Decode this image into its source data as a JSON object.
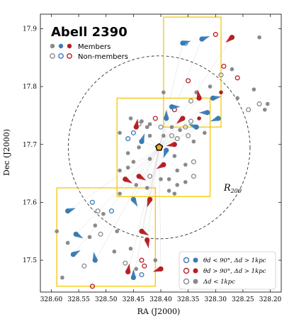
{
  "chart_data": {
    "type": "scatter",
    "title": "Abell 2390",
    "xlabel": "RA (J2000)",
    "ylabel": "Dec (J2000)",
    "xlim": [
      328.62,
      328.18
    ],
    "ylim": [
      17.445,
      17.925
    ],
    "xticks": [
      "328.60",
      "328.55",
      "328.50",
      "328.45",
      "328.40",
      "328.35",
      "328.30",
      "328.25",
      "328.20"
    ],
    "xtick_values": [
      328.6,
      328.55,
      328.5,
      328.45,
      328.4,
      328.35,
      328.3,
      328.25,
      328.2
    ],
    "yticks": [
      "17.5",
      "17.6",
      "17.7",
      "17.8",
      "17.9"
    ],
    "ytick_values": [
      17.5,
      17.6,
      17.7,
      17.8,
      17.9
    ],
    "grid": false,
    "center": {
      "ra": 328.403,
      "dec": 17.695
    },
    "r200_label": "R",
    "r200_sub": "200",
    "r200_label_pos": {
      "ra": 328.285,
      "dec": 17.62
    },
    "circle": {
      "ra": 328.403,
      "dec": 17.695,
      "radius_ra": 0.166,
      "radius_dec": 0.158
    },
    "boxes": [
      {
        "ra_min": 328.29,
        "ra_max": 328.395,
        "dec_min": 17.73,
        "dec_max": 17.92
      },
      {
        "ra_min": 328.31,
        "ra_max": 328.48,
        "dec_min": 17.61,
        "dec_max": 17.78
      },
      {
        "ra_min": 328.41,
        "ra_max": 328.59,
        "dec_min": 17.455,
        "dec_max": 17.625
      }
    ],
    "legend_top": {
      "members_label": "Members",
      "nonmembers_label": "Non-members"
    },
    "legend_bottom": [
      {
        "label": "θd < 90°, Δd > 1kpc",
        "color": "#3b7bb5",
        "type": "blue"
      },
      {
        "label": "θd > 90°, Δd > 1kpc",
        "color": "#b51f24",
        "type": "red"
      },
      {
        "label": "Δd < 1kpc",
        "color": "#888888",
        "type": "gray"
      }
    ],
    "colors": {
      "blue": "#3b7bb5",
      "red": "#b51f24",
      "gray": "#8a8a8a",
      "box": "#f5c800",
      "center": "#f5a623"
    },
    "tails": [
      {
        "ra": 328.325,
        "dec": 17.882,
        "angle": 20,
        "color": "blue"
      },
      {
        "ra": 328.36,
        "dec": 17.875,
        "angle": 15,
        "color": "blue"
      },
      {
        "ra": 328.27,
        "dec": 17.885,
        "angle": 220,
        "color": "red"
      },
      {
        "ra": 328.33,
        "dec": 17.78,
        "angle": 100,
        "color": "red"
      },
      {
        "ra": 328.305,
        "dec": 17.78,
        "angle": 10,
        "color": "blue"
      },
      {
        "ra": 328.295,
        "dec": 17.745,
        "angle": 200,
        "color": "blue"
      },
      {
        "ra": 328.315,
        "dec": 17.755,
        "angle": 180,
        "color": "blue"
      },
      {
        "ra": 328.335,
        "dec": 17.73,
        "angle": 160,
        "color": "blue"
      },
      {
        "ra": 328.36,
        "dec": 17.745,
        "angle": 220,
        "color": "red"
      },
      {
        "ra": 328.38,
        "dec": 17.765,
        "angle": 0,
        "color": "blue"
      },
      {
        "ra": 328.39,
        "dec": 17.745,
        "angle": 90,
        "color": "blue"
      },
      {
        "ra": 328.375,
        "dec": 17.7,
        "angle": 190,
        "color": "red"
      },
      {
        "ra": 328.39,
        "dec": 17.69,
        "angle": 250,
        "color": "blue"
      },
      {
        "ra": 328.395,
        "dec": 17.665,
        "angle": 210,
        "color": "red"
      },
      {
        "ra": 328.445,
        "dec": 17.73,
        "angle": 80,
        "color": "red"
      },
      {
        "ra": 328.435,
        "dec": 17.705,
        "angle": 70,
        "color": "blue"
      },
      {
        "ra": 328.465,
        "dec": 17.64,
        "angle": 330,
        "color": "red"
      },
      {
        "ra": 328.44,
        "dec": 17.645,
        "angle": 330,
        "color": "red"
      },
      {
        "ra": 328.45,
        "dec": 17.605,
        "angle": 300,
        "color": "blue"
      },
      {
        "ra": 328.42,
        "dec": 17.605,
        "angle": 250,
        "color": "red"
      },
      {
        "ra": 328.57,
        "dec": 17.585,
        "angle": 20,
        "color": "blue"
      },
      {
        "ra": 328.555,
        "dec": 17.545,
        "angle": 330,
        "color": "blue"
      },
      {
        "ra": 328.56,
        "dec": 17.51,
        "angle": 30,
        "color": "blue"
      },
      {
        "ra": 328.435,
        "dec": 17.55,
        "angle": 330,
        "color": "red"
      },
      {
        "ra": 328.425,
        "dec": 17.535,
        "angle": 280,
        "color": "red"
      },
      {
        "ra": 328.46,
        "dec": 17.48,
        "angle": 80,
        "color": "red"
      },
      {
        "ra": 328.45,
        "dec": 17.47,
        "angle": 90,
        "color": "blue"
      },
      {
        "ra": 328.4,
        "dec": 17.485,
        "angle": 200,
        "color": "red"
      },
      {
        "ra": 328.52,
        "dec": 17.5,
        "angle": 100,
        "color": "blue"
      }
    ],
    "points": [
      {
        "ra": 328.355,
        "dec": 17.875,
        "type": "open",
        "color": "blue"
      },
      {
        "ra": 328.3,
        "dec": 17.89,
        "type": "open",
        "color": "red"
      },
      {
        "ra": 328.22,
        "dec": 17.885,
        "type": "filled",
        "color": "gray"
      },
      {
        "ra": 328.285,
        "dec": 17.835,
        "type": "open",
        "color": "red"
      },
      {
        "ra": 328.27,
        "dec": 17.83,
        "type": "filled",
        "color": "gray"
      },
      {
        "ra": 328.29,
        "dec": 17.82,
        "type": "open",
        "color": "gray"
      },
      {
        "ra": 328.26,
        "dec": 17.815,
        "type": "open",
        "color": "red"
      },
      {
        "ra": 328.35,
        "dec": 17.81,
        "type": "open",
        "color": "red"
      },
      {
        "ra": 328.23,
        "dec": 17.795,
        "type": "filled",
        "color": "gray"
      },
      {
        "ra": 328.31,
        "dec": 17.8,
        "type": "filled",
        "color": "gray"
      },
      {
        "ra": 328.26,
        "dec": 17.78,
        "type": "filled",
        "color": "gray"
      },
      {
        "ra": 328.22,
        "dec": 17.77,
        "type": "open",
        "color": "gray"
      },
      {
        "ra": 328.205,
        "dec": 17.77,
        "type": "filled",
        "color": "gray"
      },
      {
        "ra": 328.21,
        "dec": 17.76,
        "type": "filled",
        "color": "gray"
      },
      {
        "ra": 328.24,
        "dec": 17.76,
        "type": "open",
        "color": "gray"
      },
      {
        "ra": 328.335,
        "dec": 17.79,
        "type": "filled",
        "color": "gray"
      },
      {
        "ra": 328.345,
        "dec": 17.775,
        "type": "open",
        "color": "gray"
      },
      {
        "ra": 328.29,
        "dec": 17.79,
        "type": "filled",
        "color": "red"
      },
      {
        "ra": 328.395,
        "dec": 17.79,
        "type": "filled",
        "color": "gray"
      },
      {
        "ra": 328.375,
        "dec": 17.76,
        "type": "open",
        "color": "red"
      },
      {
        "ra": 328.345,
        "dec": 17.74,
        "type": "open",
        "color": "gray"
      },
      {
        "ra": 328.33,
        "dec": 17.745,
        "type": "filled",
        "color": "red"
      },
      {
        "ra": 328.355,
        "dec": 17.73,
        "type": "open",
        "color": "gray"
      },
      {
        "ra": 328.365,
        "dec": 17.725,
        "type": "filled",
        "color": "gray"
      },
      {
        "ra": 328.35,
        "dec": 17.715,
        "type": "open",
        "color": "gray"
      },
      {
        "ra": 328.32,
        "dec": 17.72,
        "type": "filled",
        "color": "gray"
      },
      {
        "ra": 328.34,
        "dec": 17.705,
        "type": "filled",
        "color": "gray"
      },
      {
        "ra": 328.37,
        "dec": 17.71,
        "type": "open",
        "color": "gray"
      },
      {
        "ra": 328.38,
        "dec": 17.73,
        "type": "filled",
        "color": "gray"
      },
      {
        "ra": 328.41,
        "dec": 17.745,
        "type": "open",
        "color": "red"
      },
      {
        "ra": 328.42,
        "dec": 17.735,
        "type": "filled",
        "color": "gray"
      },
      {
        "ra": 328.4,
        "dec": 17.73,
        "type": "open",
        "color": "gray"
      },
      {
        "ra": 328.435,
        "dec": 17.74,
        "type": "filled",
        "color": "gray"
      },
      {
        "ra": 328.455,
        "dec": 17.745,
        "type": "filled",
        "color": "gray"
      },
      {
        "ra": 328.44,
        "dec": 17.735,
        "type": "open",
        "color": "gray"
      },
      {
        "ra": 328.425,
        "dec": 17.73,
        "type": "filled",
        "color": "gray"
      },
      {
        "ra": 328.45,
        "dec": 17.72,
        "type": "open",
        "color": "blue"
      },
      {
        "ra": 328.46,
        "dec": 17.71,
        "type": "open",
        "color": "blue"
      },
      {
        "ra": 328.475,
        "dec": 17.72,
        "type": "filled",
        "color": "gray"
      },
      {
        "ra": 328.42,
        "dec": 17.715,
        "type": "filled",
        "color": "gray"
      },
      {
        "ra": 328.395,
        "dec": 17.715,
        "type": "filled",
        "color": "gray"
      },
      {
        "ra": 328.38,
        "dec": 17.715,
        "type": "open",
        "color": "gray"
      },
      {
        "ra": 328.44,
        "dec": 17.695,
        "type": "filled",
        "color": "gray"
      },
      {
        "ra": 328.46,
        "dec": 17.685,
        "type": "filled",
        "color": "gray"
      },
      {
        "ra": 328.45,
        "dec": 17.67,
        "type": "filled",
        "color": "gray"
      },
      {
        "ra": 328.42,
        "dec": 17.675,
        "type": "filled",
        "color": "gray"
      },
      {
        "ra": 328.375,
        "dec": 17.68,
        "type": "filled",
        "color": "gray"
      },
      {
        "ra": 328.37,
        "dec": 17.655,
        "type": "filled",
        "color": "gray"
      },
      {
        "ra": 328.355,
        "dec": 17.665,
        "type": "filled",
        "color": "gray"
      },
      {
        "ra": 328.34,
        "dec": 17.67,
        "type": "open",
        "color": "gray"
      },
      {
        "ra": 328.37,
        "dec": 17.63,
        "type": "filled",
        "color": "gray"
      },
      {
        "ra": 328.375,
        "dec": 17.615,
        "type": "filled",
        "color": "gray"
      },
      {
        "ra": 328.385,
        "dec": 17.62,
        "type": "filled",
        "color": "gray"
      },
      {
        "ra": 328.34,
        "dec": 17.645,
        "type": "open",
        "color": "gray"
      },
      {
        "ra": 328.355,
        "dec": 17.635,
        "type": "filled",
        "color": "gray"
      },
      {
        "ra": 328.385,
        "dec": 17.64,
        "type": "filled",
        "color": "gray"
      },
      {
        "ra": 328.42,
        "dec": 17.645,
        "type": "open",
        "color": "gray"
      },
      {
        "ra": 328.4,
        "dec": 17.64,
        "type": "filled",
        "color": "gray"
      },
      {
        "ra": 328.425,
        "dec": 17.625,
        "type": "filled",
        "color": "gray"
      },
      {
        "ra": 328.46,
        "dec": 17.66,
        "type": "filled",
        "color": "gray"
      },
      {
        "ra": 328.475,
        "dec": 17.655,
        "type": "filled",
        "color": "gray"
      },
      {
        "ra": 328.445,
        "dec": 17.63,
        "type": "filled",
        "color": "gray"
      },
      {
        "ra": 328.475,
        "dec": 17.615,
        "type": "filled",
        "color": "gray"
      },
      {
        "ra": 328.525,
        "dec": 17.6,
        "type": "open",
        "color": "blue"
      },
      {
        "ra": 328.49,
        "dec": 17.585,
        "type": "open",
        "color": "blue"
      },
      {
        "ra": 328.505,
        "dec": 17.58,
        "type": "filled",
        "color": "gray"
      },
      {
        "ra": 328.515,
        "dec": 17.585,
        "type": "open",
        "color": "gray"
      },
      {
        "ra": 328.48,
        "dec": 17.55,
        "type": "filled",
        "color": "gray"
      },
      {
        "ra": 328.52,
        "dec": 17.56,
        "type": "filled",
        "color": "gray"
      },
      {
        "ra": 328.51,
        "dec": 17.545,
        "type": "open",
        "color": "gray"
      },
      {
        "ra": 328.53,
        "dec": 17.54,
        "type": "filled",
        "color": "gray"
      },
      {
        "ra": 328.57,
        "dec": 17.53,
        "type": "filled",
        "color": "gray"
      },
      {
        "ra": 328.59,
        "dec": 17.55,
        "type": "filled",
        "color": "gray"
      },
      {
        "ra": 328.58,
        "dec": 17.47,
        "type": "filled",
        "color": "gray"
      },
      {
        "ra": 328.54,
        "dec": 17.49,
        "type": "open",
        "color": "gray"
      },
      {
        "ra": 328.525,
        "dec": 17.455,
        "type": "open",
        "color": "red"
      },
      {
        "ra": 328.485,
        "dec": 17.515,
        "type": "filled",
        "color": "gray"
      },
      {
        "ra": 328.455,
        "dec": 17.52,
        "type": "filled",
        "color": "gray"
      },
      {
        "ra": 328.435,
        "dec": 17.5,
        "type": "open",
        "color": "red"
      },
      {
        "ra": 328.43,
        "dec": 17.49,
        "type": "open",
        "color": "red"
      },
      {
        "ra": 328.435,
        "dec": 17.475,
        "type": "open",
        "color": "blue"
      },
      {
        "ra": 328.41,
        "dec": 17.5,
        "type": "filled",
        "color": "gray"
      },
      {
        "ra": 328.445,
        "dec": 17.485,
        "type": "filled",
        "color": "gray"
      },
      {
        "ra": 328.465,
        "dec": 17.495,
        "type": "open",
        "color": "gray"
      }
    ]
  }
}
